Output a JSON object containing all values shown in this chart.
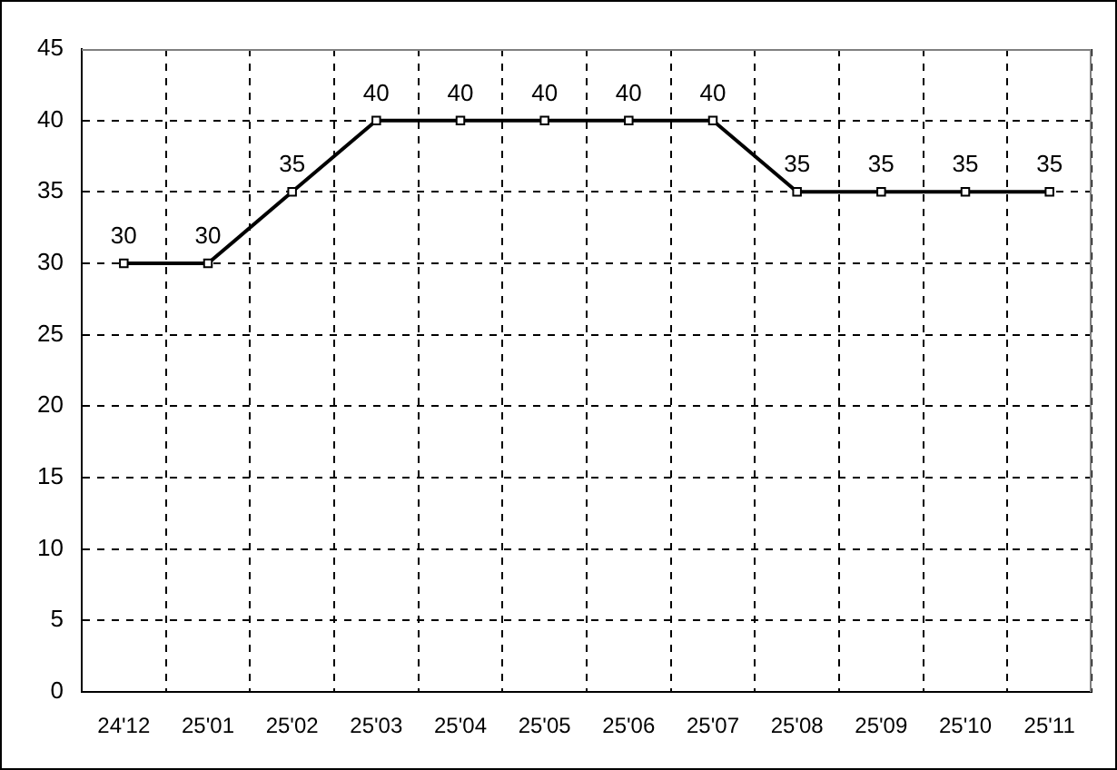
{
  "chart_data": {
    "type": "line",
    "categories": [
      "24'12",
      "25'01",
      "25'02",
      "25'03",
      "25'04",
      "25'05",
      "25'06",
      "25'07",
      "25'08",
      "25'09",
      "25'10",
      "25'11"
    ],
    "values": [
      30,
      30,
      35,
      40,
      40,
      40,
      40,
      40,
      35,
      35,
      35,
      35
    ],
    "color": "#000000",
    "ylim": [
      0,
      45
    ],
    "yticks": [
      0,
      5,
      10,
      15,
      20,
      25,
      30,
      35,
      40,
      45
    ],
    "grid": true,
    "legend": false,
    "marker": "square",
    "line_style": "solid",
    "data_labels": true
  }
}
